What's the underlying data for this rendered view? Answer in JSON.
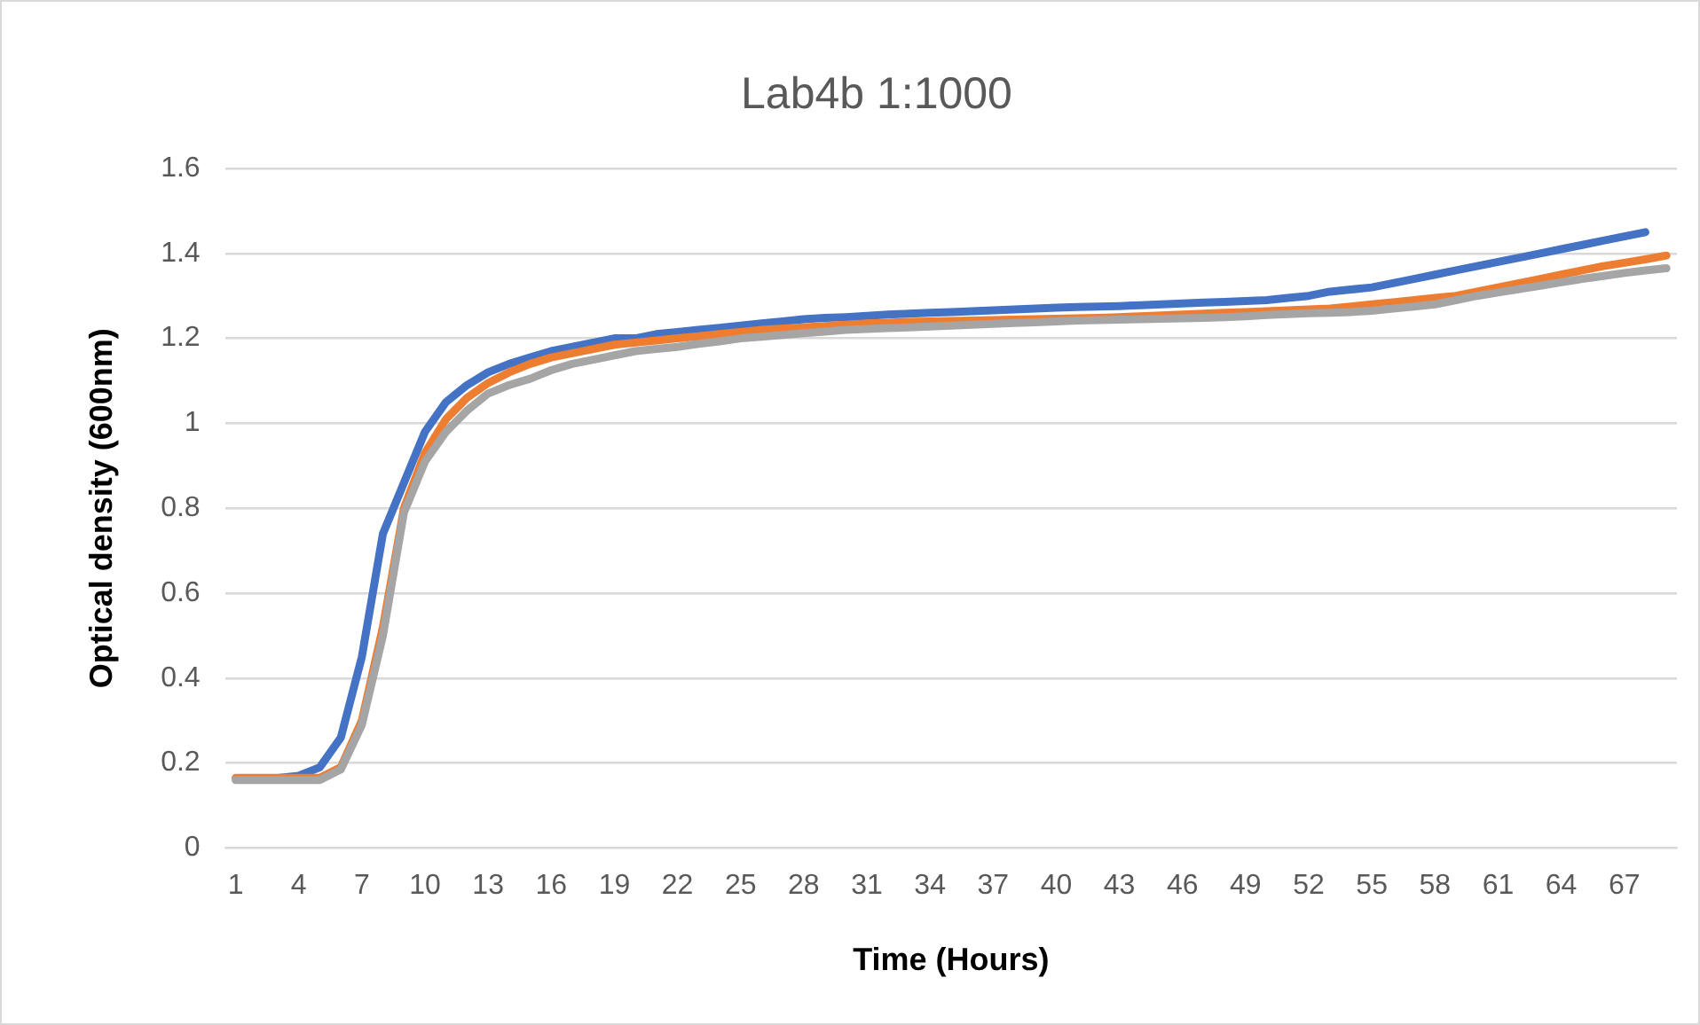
{
  "chart_data": {
    "type": "line",
    "title": "Lab4b 1:1000",
    "xlabel": "Time (Hours)",
    "ylabel": "Optical density (600nm)",
    "categories": [
      "1",
      null,
      null,
      "4",
      null,
      null,
      "7",
      null,
      null,
      "10",
      null,
      null,
      "13",
      null,
      null,
      "16",
      null,
      null,
      "19",
      null,
      null,
      "22",
      null,
      null,
      "25",
      null,
      null,
      "28",
      null,
      null,
      "31",
      null,
      null,
      "34",
      null,
      null,
      "37",
      null,
      null,
      "40",
      null,
      null,
      "43",
      null,
      null,
      "46",
      null,
      null,
      "49",
      null,
      null,
      "52",
      null,
      null,
      "55",
      null,
      null,
      "58",
      null,
      null,
      "61",
      null,
      null,
      "64",
      null,
      null,
      "67",
      null,
      null
    ],
    "series": [
      {
        "color": "#4472c4",
        "values": [
          null,
          null,
          0.165,
          0.17,
          0.19,
          0.26,
          0.45,
          0.74,
          0.86,
          0.98,
          1.05,
          1.09,
          1.12,
          1.14,
          1.155,
          1.17,
          1.18,
          1.19,
          1.2,
          1.2,
          1.21,
          1.215,
          1.22,
          1.225,
          1.23,
          1.235,
          1.24,
          1.245,
          1.248,
          1.25,
          1.253,
          1.256,
          1.258,
          1.26,
          1.262,
          1.264,
          1.266,
          1.268,
          1.27,
          1.272,
          1.274,
          1.275,
          1.276,
          1.278,
          1.28,
          1.282,
          1.284,
          1.286,
          1.288,
          1.29,
          1.295,
          1.3,
          1.31,
          1.315,
          1.32,
          1.33,
          1.34,
          1.35,
          1.36,
          1.37,
          1.38,
          1.39,
          1.4,
          1.41,
          1.42,
          1.43,
          1.44,
          1.45,
          null
        ]
      },
      {
        "color": "#ed7d31",
        "values": [
          0.165,
          0.165,
          0.165,
          0.165,
          0.165,
          0.19,
          0.3,
          0.52,
          0.8,
          0.93,
          1.01,
          1.06,
          1.095,
          1.12,
          1.14,
          1.155,
          1.165,
          1.175,
          1.185,
          1.19,
          1.195,
          1.2,
          1.205,
          1.21,
          1.215,
          1.22,
          1.223,
          1.226,
          1.229,
          1.232,
          1.235,
          1.237,
          1.239,
          1.24,
          1.241,
          1.242,
          1.243,
          1.244,
          1.245,
          1.246,
          1.247,
          1.248,
          1.25,
          1.252,
          1.254,
          1.256,
          1.258,
          1.26,
          1.262,
          1.264,
          1.266,
          1.268,
          1.27,
          1.275,
          1.28,
          1.285,
          1.29,
          1.295,
          1.3,
          1.31,
          1.32,
          1.33,
          1.34,
          1.35,
          1.36,
          1.37,
          1.378,
          1.386,
          1.395
        ]
      },
      {
        "color": "#a5a5a5",
        "values": [
          0.16,
          0.16,
          0.16,
          0.16,
          0.16,
          0.185,
          0.29,
          0.5,
          0.79,
          0.91,
          0.98,
          1.03,
          1.07,
          1.09,
          1.105,
          1.125,
          1.14,
          1.15,
          1.16,
          1.17,
          1.175,
          1.18,
          1.187,
          1.193,
          1.2,
          1.204,
          1.208,
          1.212,
          1.216,
          1.22,
          1.222,
          1.224,
          1.226,
          1.228,
          1.23,
          1.232,
          1.234,
          1.236,
          1.238,
          1.24,
          1.242,
          1.243,
          1.244,
          1.245,
          1.246,
          1.247,
          1.248,
          1.25,
          1.252,
          1.255,
          1.257,
          1.259,
          1.26,
          1.262,
          1.265,
          1.27,
          1.275,
          1.28,
          1.29,
          1.3,
          1.308,
          1.316,
          1.324,
          1.332,
          1.34,
          1.347,
          1.354,
          1.36,
          1.365
        ]
      }
    ],
    "ylim": [
      0,
      1.6
    ],
    "yticks": [
      0,
      0.2,
      0.4,
      0.6,
      0.8,
      1,
      1.2,
      1.4,
      1.6
    ],
    "grid": "y",
    "legend": false,
    "marker": "none",
    "line_style": "solid"
  }
}
